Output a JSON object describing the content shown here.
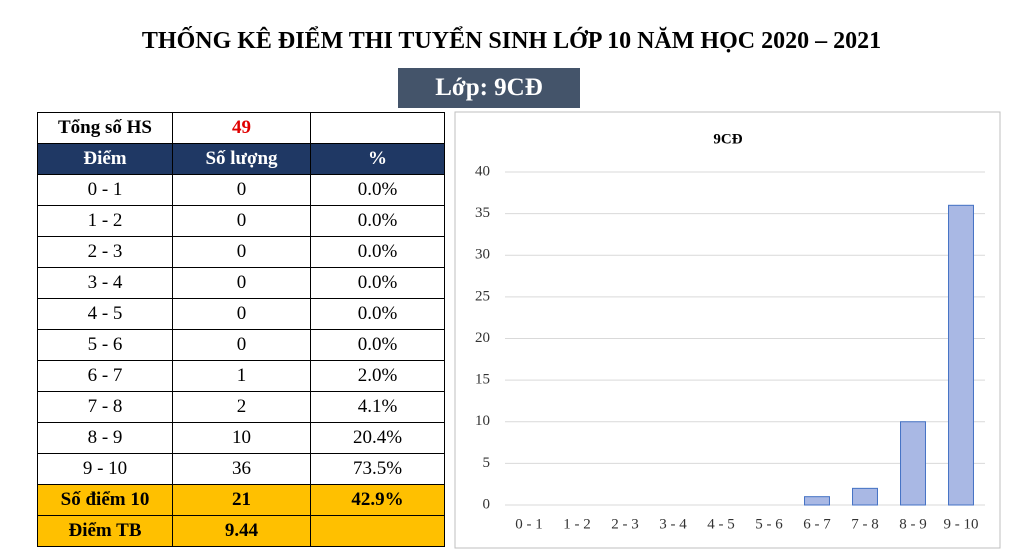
{
  "header": {
    "title": "THỐNG KÊ ĐIỂM THI TUYỂN SINH LỚP 10 NĂM HỌC 2020 – 2021",
    "class_label": "Lớp: 9CĐ"
  },
  "table": {
    "total_label": "Tổng số HS",
    "total": 49,
    "columns": [
      "Điểm",
      "Số lượng",
      "%"
    ],
    "rows": [
      [
        "0 - 1",
        0,
        "0.0%"
      ],
      [
        "1 - 2",
        0,
        "0.0%"
      ],
      [
        "2 - 3",
        0,
        "0.0%"
      ],
      [
        "3 - 4",
        0,
        "0.0%"
      ],
      [
        "4 - 5",
        0,
        "0.0%"
      ],
      [
        "5 - 6",
        0,
        "0.0%"
      ],
      [
        "6 - 7",
        1,
        "2.0%"
      ],
      [
        "7 - 8",
        2,
        "4.1%"
      ],
      [
        "8 - 9",
        10,
        "20.4%"
      ],
      [
        "9 - 10",
        36,
        "73.5%"
      ]
    ],
    "tens_label": "Số điểm 10",
    "tens_count": 21,
    "tens_pct": "42.9%",
    "avg_label": "Điểm TB",
    "avg": 9.44
  },
  "chart_data": {
    "type": "bar",
    "title": "9CĐ",
    "categories": [
      "0 - 1",
      "1 - 2",
      "2 - 3",
      "3 - 4",
      "4 - 5",
      "5 - 6",
      "6 - 7",
      "7 - 8",
      "8 - 9",
      "9 - 10"
    ],
    "values": [
      0,
      0,
      0,
      0,
      0,
      0,
      1,
      2,
      10,
      36
    ],
    "color": "#a9b8e4",
    "ylim": [
      0,
      40
    ],
    "yticks": [
      0,
      5,
      10,
      15,
      20,
      25,
      30,
      35,
      40
    ],
    "grid": true
  }
}
